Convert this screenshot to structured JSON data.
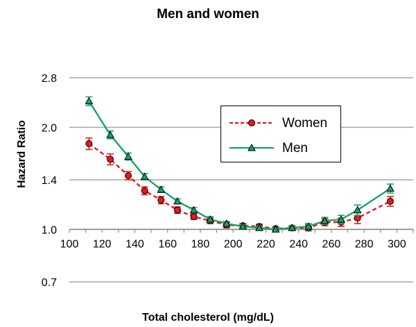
{
  "chart_data": {
    "type": "line",
    "title": "Men and women",
    "xlabel": "Total cholesterol (mg/dL)",
    "ylabel": "Hazard Ratio",
    "xlim": [
      100,
      310
    ],
    "ylim": [
      0.7,
      2.8
    ],
    "yscale": "log",
    "x_ticks": [
      100,
      120,
      140,
      160,
      180,
      200,
      220,
      240,
      260,
      280,
      300
    ],
    "x_tick_labels": [
      "100",
      "120",
      "140",
      "160",
      "180",
      "200",
      "220",
      "240",
      "260",
      "280",
      "300"
    ],
    "y_ticks": [
      0.7,
      1.0,
      1.4,
      2.0,
      2.8
    ],
    "y_tick_labels": [
      "0.7",
      "1.0",
      "1.4",
      "2.0",
      "2.8"
    ],
    "grid": "horizontal",
    "legend_position": "upper-right",
    "series": [
      {
        "name": "Women",
        "color": "#e31a1c",
        "line_style": "dashed",
        "marker": "circle",
        "x": [
          112,
          125,
          136,
          146,
          156,
          166,
          176,
          186,
          196,
          206,
          216,
          226,
          236,
          246,
          256,
          266,
          276,
          296
        ],
        "y": [
          1.79,
          1.61,
          1.44,
          1.3,
          1.22,
          1.14,
          1.09,
          1.06,
          1.03,
          1.025,
          1.02,
          1.005,
          1.01,
          1.01,
          1.05,
          1.05,
          1.08,
          1.21
        ],
        "err": [
          0.07,
          0.06,
          0.04,
          0.035,
          0.03,
          0.025,
          0.02,
          0.02,
          0.02,
          0.015,
          0.015,
          0.01,
          0.015,
          0.02,
          0.025,
          0.03,
          0.04,
          0.04
        ]
      },
      {
        "name": "Men",
        "color": "#18a36a",
        "line_style": "solid",
        "marker": "triangle",
        "x": [
          112,
          125,
          136,
          146,
          156,
          166,
          176,
          186,
          196,
          206,
          216,
          226,
          236,
          246,
          256,
          266,
          276,
          296
        ],
        "y": [
          2.39,
          1.9,
          1.64,
          1.43,
          1.31,
          1.21,
          1.14,
          1.07,
          1.04,
          1.02,
          1.01,
          1.0,
          1.01,
          1.02,
          1.06,
          1.07,
          1.14,
          1.32
        ],
        "err": [
          0.07,
          0.05,
          0.04,
          0.03,
          0.025,
          0.02,
          0.02,
          0.02,
          0.015,
          0.015,
          0.01,
          0.01,
          0.015,
          0.02,
          0.025,
          0.03,
          0.04,
          0.04
        ]
      }
    ]
  }
}
